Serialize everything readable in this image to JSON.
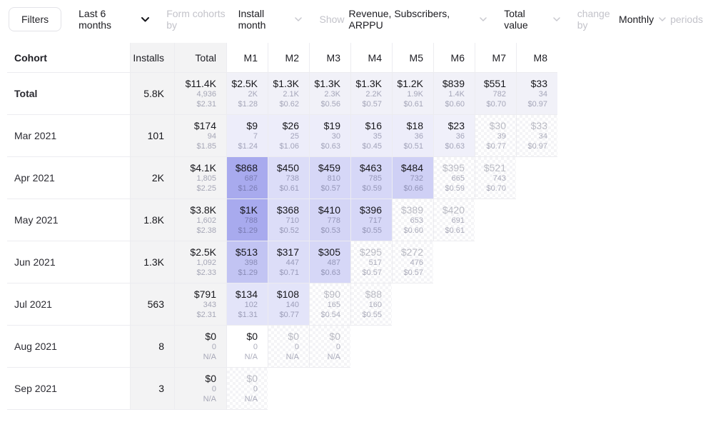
{
  "toolbar": {
    "filters_label": "Filters",
    "date_range": "Last 6 months",
    "form_cohorts_label": "Form cohorts by",
    "form_cohorts_value": "Install month",
    "show_label": "Show",
    "show_value": "Revenue, Subscribers, ARPPU",
    "value_mode": "Total value",
    "change_by_label": "change by",
    "change_by_value": "Monthly",
    "periods_label": "periods"
  },
  "colors": {
    "heat_dark": "#a8aaee",
    "heat_medium": "#c2c4f3",
    "heat_light": "#d6d7f7",
    "heat_faint": "#ededfa",
    "total_row_bg": "#f1f1f8",
    "fixed_col_bg": "#f3f3f4",
    "border": "#ececf0"
  },
  "table": {
    "headers": [
      "Cohort",
      "Installs",
      "Total",
      "M1",
      "M2",
      "M3",
      "M4",
      "M5",
      "M6",
      "M7",
      "M8"
    ],
    "rows": [
      {
        "label": "Total",
        "bold": true,
        "installs": "5.8K",
        "total": {
          "rev": "$11.4K",
          "subs": "4,936",
          "arppu": "$2.31"
        },
        "cells": [
          {
            "rev": "$2.5K",
            "subs": "2K",
            "arppu": "$1.28",
            "bg": "#f1f1f8"
          },
          {
            "rev": "$1.3K",
            "subs": "2.1K",
            "arppu": "$0.62",
            "bg": "#f1f1f8"
          },
          {
            "rev": "$1.3K",
            "subs": "2.3K",
            "arppu": "$0.56",
            "bg": "#f1f1f8"
          },
          {
            "rev": "$1.3K",
            "subs": "2.2K",
            "arppu": "$0.57",
            "bg": "#f1f1f8"
          },
          {
            "rev": "$1.2K",
            "subs": "1.9K",
            "arppu": "$0.61",
            "bg": "#f1f1f8"
          },
          {
            "rev": "$839",
            "subs": "1.4K",
            "arppu": "$0.60",
            "bg": "#f1f1f8"
          },
          {
            "rev": "$551",
            "subs": "782",
            "arppu": "$0.70",
            "bg": "#f1f1f8"
          },
          {
            "rev": "$33",
            "subs": "34",
            "arppu": "$0.97",
            "bg": "#f1f1f8"
          }
        ]
      },
      {
        "label": "Mar 2021",
        "bold": false,
        "installs": "101",
        "total": {
          "rev": "$174",
          "subs": "94",
          "arppu": "$1.85"
        },
        "cells": [
          {
            "rev": "$9",
            "subs": "7",
            "arppu": "$1.24",
            "bg": "#ededfa"
          },
          {
            "rev": "$26",
            "subs": "25",
            "arppu": "$1.06",
            "bg": "#ededfa"
          },
          {
            "rev": "$19",
            "subs": "30",
            "arppu": "$0.63",
            "bg": "#ededfa"
          },
          {
            "rev": "$16",
            "subs": "35",
            "arppu": "$0.45",
            "bg": "#ededfa"
          },
          {
            "rev": "$18",
            "subs": "36",
            "arppu": "$0.51",
            "bg": "#ededfa"
          },
          {
            "rev": "$23",
            "subs": "36",
            "arppu": "$0.63",
            "bg": "#f0f0fa"
          },
          {
            "rev": "$30",
            "subs": "39",
            "arppu": "$0.77",
            "bg": "checker"
          },
          {
            "rev": "$33",
            "subs": "34",
            "arppu": "$0.97",
            "bg": "checker"
          }
        ]
      },
      {
        "label": "Apr 2021",
        "bold": false,
        "installs": "2K",
        "total": {
          "rev": "$4.1K",
          "subs": "1,805",
          "arppu": "$2.25"
        },
        "cells": [
          {
            "rev": "$868",
            "subs": "687",
            "arppu": "$1.26",
            "bg": "#a8aaee"
          },
          {
            "rev": "$450",
            "subs": "738",
            "arppu": "$0.61",
            "bg": "#dcddf8"
          },
          {
            "rev": "$459",
            "subs": "810",
            "arppu": "$0.57",
            "bg": "#d6d7f7"
          },
          {
            "rev": "$463",
            "subs": "785",
            "arppu": "$0.59",
            "bg": "#d6d7f7"
          },
          {
            "rev": "$484",
            "subs": "732",
            "arppu": "$0.66",
            "bg": "#cfd0f5"
          },
          {
            "rev": "$395",
            "subs": "665",
            "arppu": "$0.59",
            "bg": "checker"
          },
          {
            "rev": "$521",
            "subs": "743",
            "arppu": "$0.70",
            "bg": "checker"
          }
        ]
      },
      {
        "label": "May 2021",
        "bold": false,
        "installs": "1.8K",
        "total": {
          "rev": "$3.8K",
          "subs": "1,602",
          "arppu": "$2.38"
        },
        "cells": [
          {
            "rev": "$1K",
            "subs": "788",
            "arppu": "$1.29",
            "bg": "#a8aaee"
          },
          {
            "rev": "$368",
            "subs": "710",
            "arppu": "$0.52",
            "bg": "#dcddf8"
          },
          {
            "rev": "$410",
            "subs": "778",
            "arppu": "$0.53",
            "bg": "#d4d5f6"
          },
          {
            "rev": "$396",
            "subs": "717",
            "arppu": "$0.55",
            "bg": "#d6d7f7"
          },
          {
            "rev": "$389",
            "subs": "653",
            "arppu": "$0.60",
            "bg": "checker"
          },
          {
            "rev": "$420",
            "subs": "691",
            "arppu": "$0.61",
            "bg": "checker"
          }
        ]
      },
      {
        "label": "Jun 2021",
        "bold": false,
        "installs": "1.3K",
        "total": {
          "rev": "$2.5K",
          "subs": "1,092",
          "arppu": "$2.33"
        },
        "cells": [
          {
            "rev": "$513",
            "subs": "398",
            "arppu": "$1.29",
            "bg": "#c2c4f3"
          },
          {
            "rev": "$317",
            "subs": "447",
            "arppu": "$0.71",
            "bg": "#dcddf8"
          },
          {
            "rev": "$305",
            "subs": "487",
            "arppu": "$0.63",
            "bg": "#d6d7f7"
          },
          {
            "rev": "$295",
            "subs": "517",
            "arppu": "$0.57",
            "bg": "checker"
          },
          {
            "rev": "$272",
            "subs": "476",
            "arppu": "$0.57",
            "bg": "checker"
          }
        ]
      },
      {
        "label": "Jul 2021",
        "bold": false,
        "installs": "563",
        "total": {
          "rev": "$791",
          "subs": "343",
          "arppu": "$2.31"
        },
        "cells": [
          {
            "rev": "$134",
            "subs": "102",
            "arppu": "$1.31",
            "bg": "#e3e4f9"
          },
          {
            "rev": "$108",
            "subs": "140",
            "arppu": "$0.77",
            "bg": "#e3e4f9"
          },
          {
            "rev": "$90",
            "subs": "165",
            "arppu": "$0.54",
            "bg": "checker"
          },
          {
            "rev": "$88",
            "subs": "160",
            "arppu": "$0.55",
            "bg": "checker"
          }
        ]
      },
      {
        "label": "Aug 2021",
        "bold": false,
        "installs": "8",
        "total": {
          "rev": "$0",
          "subs": "0",
          "arppu": "N/A"
        },
        "cells": [
          {
            "rev": "$0",
            "subs": "0",
            "arppu": "N/A",
            "bg": "none"
          },
          {
            "rev": "$0",
            "subs": "0",
            "arppu": "N/A",
            "bg": "checker"
          },
          {
            "rev": "$0",
            "subs": "0",
            "arppu": "N/A",
            "bg": "checker"
          }
        ]
      },
      {
        "label": "Sep 2021",
        "bold": false,
        "installs": "3",
        "total": {
          "rev": "$0",
          "subs": "0",
          "arppu": "N/A"
        },
        "cells": [
          {
            "rev": "$0",
            "subs": "0",
            "arppu": "N/A",
            "bg": "checker"
          }
        ]
      }
    ]
  }
}
